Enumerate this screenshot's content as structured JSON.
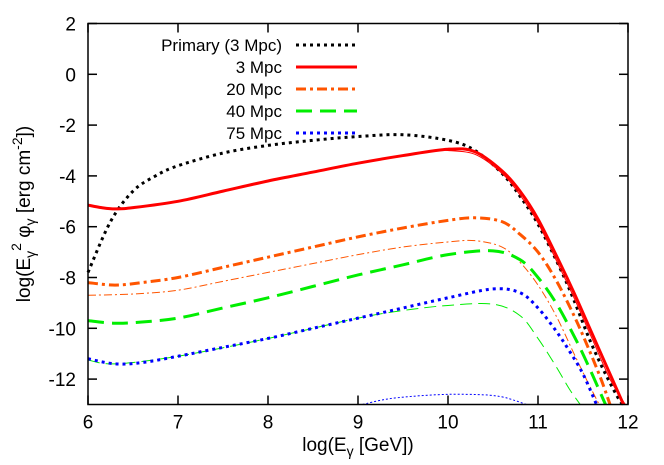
{
  "chart_data": {
    "type": "line",
    "xlabel": {
      "pre": "log(E",
      "sub": "γ",
      "post": " [GeV])"
    },
    "ylabel": {
      "pre": "log(E",
      "sub1": "γ",
      "sup1": "2",
      "mid": " φ",
      "sub2": "γ",
      "post": " [erg cm",
      "sup2": "-2",
      "end": "])"
    },
    "xlim": [
      6,
      12
    ],
    "ylim": [
      -13,
      2
    ],
    "xticks": [
      "6",
      "7",
      "8",
      "9",
      "10",
      "11",
      "12"
    ],
    "yticks": [
      "2",
      "0",
      "-2",
      "-4",
      "-6",
      "-8",
      "-10",
      "-12"
    ],
    "grid": false,
    "legend_position": "top-left",
    "series": [
      {
        "name": "Primary (3 Mpc)",
        "color": "#000000",
        "style": "dotted",
        "width": "thick",
        "in_legend": true,
        "x": [
          6,
          6.25,
          6.5,
          6.75,
          7,
          7.5,
          8,
          8.5,
          9,
          9.5,
          10,
          10.3,
          10.6,
          10.8,
          11,
          11.24,
          11.4,
          11.58,
          11.75,
          11.9,
          11.95
        ],
        "y": [
          -7.8,
          -5.8,
          -4.6,
          -4.0,
          -3.6,
          -3.1,
          -2.8,
          -2.6,
          -2.45,
          -2.38,
          -2.6,
          -3.0,
          -3.9,
          -4.8,
          -5.9,
          -7.6,
          -8.9,
          -10.5,
          -11.8,
          -12.8,
          -13
        ]
      },
      {
        "name": "3 Mpc",
        "color": "#ff0000",
        "style": "solid",
        "width": "thick",
        "in_legend": true,
        "x": [
          6,
          6.15,
          6.3,
          6.5,
          7,
          7.5,
          8,
          8.5,
          9,
          9.5,
          10,
          10.3,
          10.6,
          10.8,
          11,
          11.24,
          11.4,
          11.6,
          11.8,
          11.95
        ],
        "y": [
          -5.15,
          -5.25,
          -5.3,
          -5.25,
          -5.0,
          -4.6,
          -4.2,
          -3.85,
          -3.5,
          -3.2,
          -2.95,
          -3.05,
          -3.8,
          -4.6,
          -5.7,
          -7.4,
          -8.6,
          -10.2,
          -11.8,
          -13
        ]
      },
      {
        "name": "",
        "color": "#ff0000",
        "style": "solid",
        "width": "thin",
        "in_legend": false,
        "x": [
          9.9,
          10,
          10.3,
          10.6,
          10.8,
          11,
          11.24,
          11.4,
          11.6,
          11.8,
          11.97
        ],
        "y": [
          -3.0,
          -3.0,
          -3.15,
          -3.9,
          -4.75,
          -5.85,
          -7.6,
          -8.8,
          -10.4,
          -12.0,
          -13
        ]
      },
      {
        "name": "20 Mpc",
        "color": "#ff5500",
        "style": "dashdot",
        "width": "thick",
        "in_legend": true,
        "x": [
          6,
          6.3,
          6.6,
          7,
          7.5,
          8,
          8.5,
          9,
          9.5,
          10,
          10.3,
          10.6,
          10.8,
          11,
          11.2,
          11.4,
          11.55,
          11.7,
          11.8
        ],
        "y": [
          -8.2,
          -8.3,
          -8.2,
          -8.0,
          -7.6,
          -7.2,
          -6.8,
          -6.4,
          -6.05,
          -5.75,
          -5.65,
          -5.8,
          -6.3,
          -7.0,
          -8.1,
          -9.5,
          -10.7,
          -12.0,
          -13
        ]
      },
      {
        "name": "",
        "color": "#ff5500",
        "style": "dashdot",
        "width": "thin",
        "in_legend": false,
        "x": [
          6,
          6.5,
          7,
          7.5,
          8,
          8.5,
          9,
          9.5,
          10,
          10.3,
          10.6,
          10.8,
          11,
          11.2,
          11.4,
          11.55,
          11.68
        ],
        "y": [
          -8.7,
          -8.65,
          -8.5,
          -8.15,
          -7.8,
          -7.45,
          -7.1,
          -6.8,
          -6.6,
          -6.55,
          -6.8,
          -7.4,
          -8.3,
          -9.5,
          -11.0,
          -12.1,
          -13
        ]
      },
      {
        "name": "40 Mpc",
        "color": "#00ee00",
        "style": "dashed",
        "width": "thick",
        "in_legend": true,
        "x": [
          6,
          6.3,
          6.6,
          7,
          7.5,
          8,
          8.5,
          9,
          9.5,
          10,
          10.5,
          10.8,
          11,
          11.2,
          11.4,
          11.55,
          11.75
        ],
        "y": [
          -9.7,
          -9.8,
          -9.75,
          -9.6,
          -9.2,
          -8.8,
          -8.35,
          -7.9,
          -7.5,
          -7.1,
          -6.95,
          -7.3,
          -8.0,
          -9.0,
          -10.3,
          -11.4,
          -13
        ]
      },
      {
        "name": "",
        "color": "#00ee00",
        "style": "dashed",
        "width": "thin",
        "in_legend": false,
        "x": [
          6,
          6.3,
          7,
          8,
          9,
          9.5,
          10,
          10.5,
          10.8,
          11,
          11.2,
          11.35,
          11.47
        ],
        "y": [
          -11.25,
          -11.4,
          -11.1,
          -10.4,
          -9.6,
          -9.3,
          -9.1,
          -9.05,
          -9.5,
          -10.4,
          -11.5,
          -12.4,
          -13
        ]
      },
      {
        "name": "75 Mpc",
        "color": "#0000ff",
        "style": "dotted",
        "width": "thick",
        "in_legend": true,
        "x": [
          6,
          6.3,
          6.6,
          7,
          7.5,
          8,
          8.5,
          9,
          9.5,
          10,
          10.5,
          10.8,
          11,
          11.2,
          11.35,
          11.5,
          11.65
        ],
        "y": [
          -11.2,
          -11.4,
          -11.35,
          -11.1,
          -10.75,
          -10.4,
          -10.0,
          -9.6,
          -9.2,
          -8.8,
          -8.45,
          -8.6,
          -9.2,
          -10.1,
          -10.9,
          -11.8,
          -13
        ]
      },
      {
        "name": "",
        "color": "#0000ff",
        "style": "dotted",
        "width": "thin",
        "in_legend": false,
        "x": [
          9.05,
          9.3,
          9.6,
          10,
          10.4,
          10.6,
          10.75,
          10.87
        ],
        "y": [
          -13,
          -12.8,
          -12.68,
          -12.6,
          -12.62,
          -12.7,
          -12.85,
          -13
        ]
      }
    ]
  }
}
